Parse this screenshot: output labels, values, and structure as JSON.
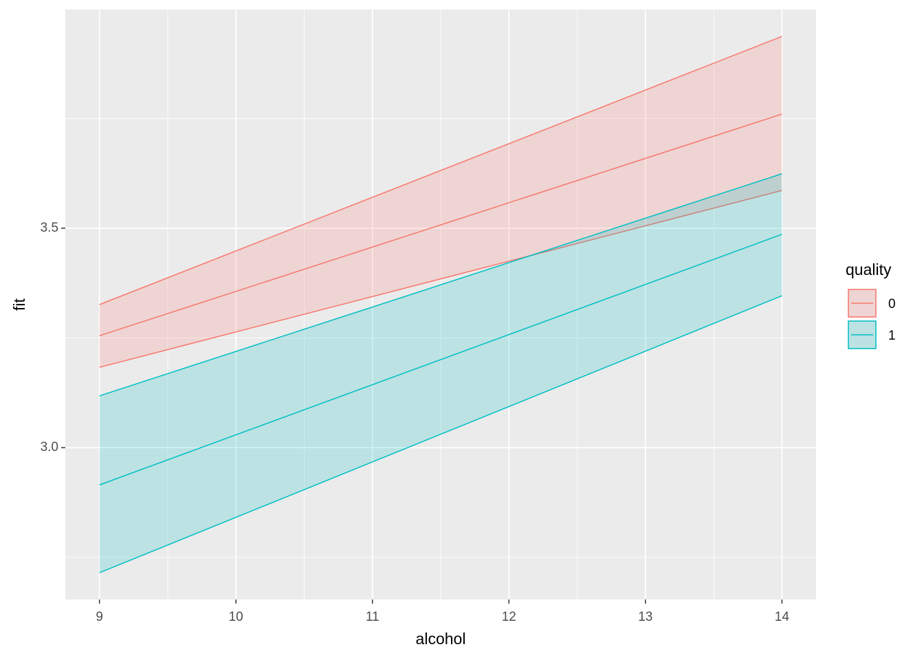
{
  "chart_data": {
    "type": "ribbon",
    "x_label": "alcohol",
    "y_label": "fit",
    "legend_title": "quality",
    "legend": "right",
    "grid": true,
    "xlim": [
      8.75,
      14.25
    ],
    "ylim": [
      2.654,
      3.998
    ],
    "xticks": [
      9,
      10,
      11,
      12,
      13,
      14
    ],
    "xminor": [
      9.5,
      10.5,
      11.5,
      12.5,
      13.5
    ],
    "yticks": [
      {
        "value": 3,
        "label": "3.0"
      },
      3.5
    ],
    "yminor": [
      2.75,
      3.25,
      3.75
    ],
    "series": [
      {
        "name": "0",
        "color": "#F8766D",
        "x": [
          9,
          14
        ],
        "values": [
          3.255,
          3.76
        ],
        "lower": [
          3.183,
          3.586
        ],
        "upper": [
          3.326,
          3.937
        ]
      },
      {
        "name": "1",
        "color": "#00BFC4",
        "x": [
          9,
          14
        ],
        "values": [
          2.915,
          3.486
        ],
        "lower": [
          2.715,
          3.346
        ],
        "upper": [
          3.118,
          3.624
        ]
      }
    ]
  }
}
